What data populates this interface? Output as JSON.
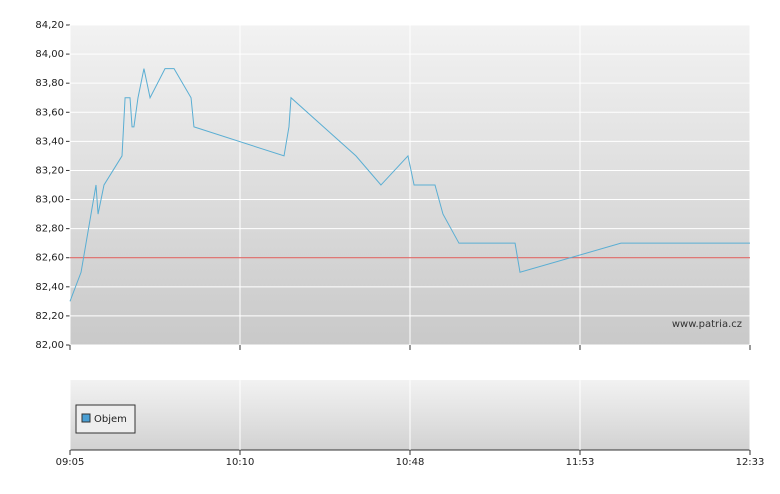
{
  "chart_data": {
    "type": "line",
    "watermark": "www.patria.cz",
    "xlim": [
      0,
      4
    ],
    "xticks": [
      {
        "value": 0,
        "label": "09:05"
      },
      {
        "value": 1,
        "label": "10:10"
      },
      {
        "value": 2,
        "label": "10:48"
      },
      {
        "value": 3,
        "label": "11:53"
      },
      {
        "value": 4,
        "label": "12:33"
      }
    ],
    "ylim": [
      82.0,
      84.2
    ],
    "yticks": [
      {
        "value": 82.0,
        "label": "82,00"
      },
      {
        "value": 82.2,
        "label": "82,20"
      },
      {
        "value": 82.4,
        "label": "82,40"
      },
      {
        "value": 82.6,
        "label": "82,60"
      },
      {
        "value": 82.8,
        "label": "82,80"
      },
      {
        "value": 83.0,
        "label": "83,00"
      },
      {
        "value": 83.2,
        "label": "83,20"
      },
      {
        "value": 83.4,
        "label": "83,40"
      },
      {
        "value": 83.6,
        "label": "83,60"
      },
      {
        "value": 83.8,
        "label": "83,80"
      },
      {
        "value": 84.0,
        "label": "84,00"
      },
      {
        "value": 84.2,
        "label": "84,20"
      }
    ],
    "grid": true,
    "reference_line": {
      "value": 82.6,
      "color": "#d9534f"
    },
    "series": [
      {
        "color": "#5aaed3",
        "x": [
          0,
          0.065,
          0.153,
          0.165,
          0.2,
          0.306,
          0.324,
          0.353,
          0.365,
          0.376,
          0.4,
          0.435,
          0.471,
          0.559,
          0.612,
          0.712,
          0.729,
          1.259,
          1.288,
          1.3,
          1.682,
          1.829,
          1.988,
          2.024,
          2.147,
          2.194,
          2.288,
          2.618,
          2.647,
          3.241,
          4
        ],
        "values": [
          82.3,
          82.5,
          83.1,
          82.9,
          83.1,
          83.3,
          83.7,
          83.7,
          83.5,
          83.5,
          83.7,
          83.9,
          83.7,
          83.9,
          83.9,
          83.7,
          83.5,
          83.3,
          83.5,
          83.7,
          83.3,
          83.1,
          83.3,
          83.1,
          83.1,
          82.9,
          82.7,
          82.7,
          82.5,
          82.7,
          82.7
        ]
      }
    ],
    "volume": {
      "name": "Objem",
      "color": "#4a9fd4"
    }
  }
}
